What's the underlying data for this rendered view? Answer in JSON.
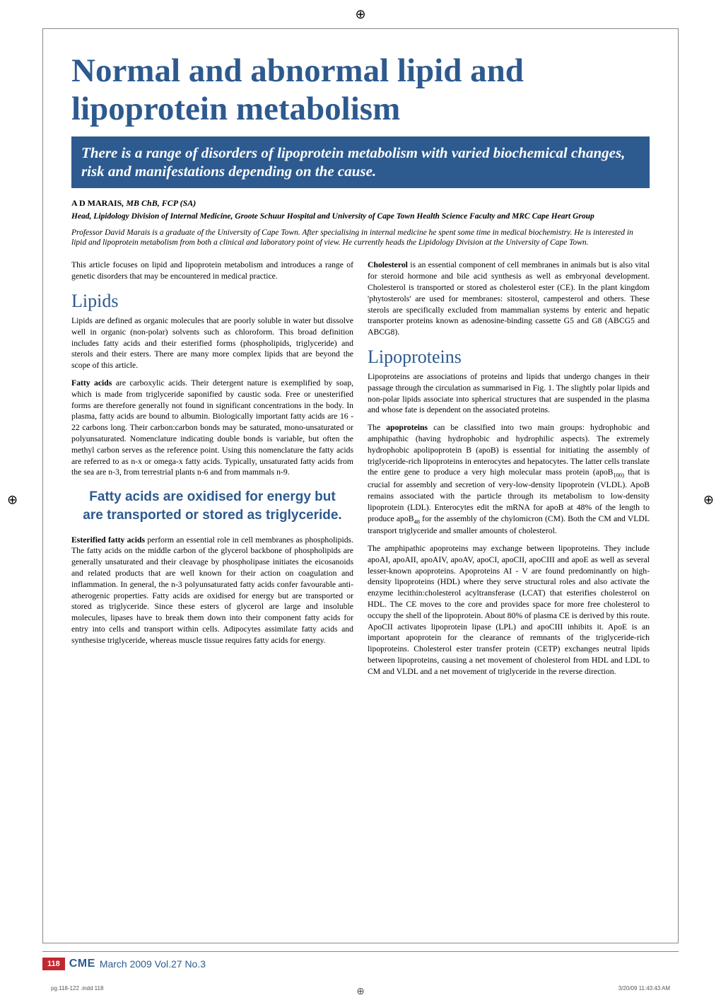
{
  "crop_mark": "⊕",
  "title": "Normal and abnormal lipid and lipoprotein metabolism",
  "subtitle": "There is a range of disorders of lipoprotein metabolism with varied biochemical changes, risk and manifestations depending on the cause.",
  "author_name": "A D MARAIS",
  "author_cred": ", MB ChB, FCP (SA)",
  "affiliation": "Head, Lipidology Division of Internal Medicine, Groote Schuur Hospital and University of Cape Town Health Science Faculty and MRC Cape Heart Group",
  "bio": "Professor David Marais is a graduate of the University of Cape Town. After specialising in internal medicine he spent some time in medical biochemistry. He is interested in lipid and lipoprotein metabolism from both a clinical and laboratory point of view. He currently heads the Lipidology Division at the University of Cape Town.",
  "intro_para": "This article focuses on lipid and lipoprotein metabolism and introduces a range of genetic disorders that may be encountered in medical practice.",
  "sec_lipids": "Lipids",
  "lipids_p1": "Lipids are defined as organic molecules that are poorly soluble in water but dissolve well in organic (non-polar) solvents such as chloroform. This broad definition includes fatty acids and their esterified forms (phospholipids, triglyceride) and sterols and their esters. There are many more complex lipids that are beyond the scope of this article.",
  "lipids_p2_lead": "Fatty acids",
  "lipids_p2": " are carboxylic acids. Their detergent nature is exemplified by soap, which is made from triglyceride saponified by caustic soda. Free or unesterified forms are therefore generally not found in significant concentrations in the body. In plasma, fatty acids are bound to albumin. Biologically important fatty acids are 16 - 22 carbons long. Their carbon:carbon bonds may be saturated, mono-unsaturated or polyunsaturated. Nomenclature indicating double bonds is variable, but often the methyl carbon serves as the reference point. Using this nomenclature the fatty acids are referred to as n-x or omega-x fatty acids. Typically, unsaturated fatty acids from the sea are n-3, from terrestrial plants n-6 and from mammals n-9.",
  "pullquote": "Fatty acids are oxidised for energy but are transported or stored as triglyceride.",
  "lipids_p3_lead": "Esterified fatty acids",
  "lipids_p3": " perform an essential role in cell membranes as phospholipids. The fatty acids on the middle carbon of the glycerol backbone of phospholipids are generally unsaturated and their cleavage by phospholipase initiates the eicosanoids and related products that are well known for their action on coagulation and inflammation. In general, the n-3 polyunsaturated fatty acids confer favourable anti-atherogenic properties. Fatty acids are oxidised for energy but are transported or stored as triglyceride. Since these esters of glycerol are large and insoluble molecules, lipases have to break them down into their component fatty acids for entry into cells and transport within cells. Adipocytes assimilate fatty acids and synthesise triglyceride, whereas muscle tissue requires fatty acids for energy.",
  "chol_lead": "Cholesterol",
  "chol_p": " is an essential component of cell membranes in animals but is also vital for steroid hormone and bile acid synthesis as well as embryonal development. Cholesterol is transported or stored as cholesterol ester (CE). In the plant kingdom 'phytosterols' are used for membranes: sitosterol, campesterol and others. These sterols are specifically excluded from mammalian systems by enteric and hepatic transporter proteins known as adenosine-binding cassette G5 and G8 (ABCG5 and ABCG8).",
  "sec_lipoproteins": "Lipoproteins",
  "lipo_p1": "Lipoproteins are associations of proteins and lipids that undergo changes in their passage through the circulation as summarised in Fig. 1. The slightly polar lipids and non-polar lipids associate into spherical structures that are suspended in the plasma and whose fate is dependent on the associated proteins.",
  "lipo_p2a": "The ",
  "lipo_p2_lead": "apoproteins",
  "lipo_p2b": " can be classified into two main groups: hydrophobic and amphipathic (having hydrophobic and hydrophilic aspects). The extremely hydrophobic apolipoprotein B (apoB) is essential for initiating the assembly of triglyceride-rich lipoproteins in enterocytes and hepatocytes. The latter cells translate the entire gene to produce a very high molecular mass protein (apoB",
  "sub100": "100)",
  "lipo_p2c": " that is crucial for assembly and secretion of very-low-density lipoprotein (VLDL). ApoB remains associated with the particle through its metabolism to low-density lipoprotein (LDL). Enterocytes edit the mRNA for apoB at 48% of the length to produce apoB",
  "sub48": "48",
  "lipo_p2d": " for the assembly of the chylomicron (CM). Both the CM and VLDL transport triglyceride and smaller amounts of cholesterol.",
  "lipo_p3": "The amphipathic apoproteins may exchange between lipoproteins. They include apoAI, apoAII, apoAIV, apoAV, apoCI, apoCII, apoCIII and apoE as well as several lesser-known apoproteins. Apoproteins AI - V are found predominantly on high-density lipoproteins (HDL) where they serve structural roles and also activate the enzyme lecithin:cholesterol acyltransferase (LCAT) that esterifies cholesterol on HDL. The CE moves to the core and provides space for more free cholesterol to occupy the shell of the lipoprotein. About 80% of plasma CE is derived by this route. ApoCII activates lipoprotein lipase (LPL) and apoCIII inhibits it. ApoE is an important apoprotein for the clearance of remnants of the triglyceride-rich lipoproteins. Cholesterol ester transfer protein (CETP) exchanges neutral lipids between lipoproteins, causing a net movement of cholesterol from HDL and LDL to CM and VLDL and a net movement of triglyceride in the reverse direction.",
  "page_num": "118",
  "footer_cme": "CME",
  "footer_date": "March  2009  Vol.27  No.3",
  "indd_file": "pg.118-122 .indd   118",
  "indd_time": "3/20/09   11:43:43 AM",
  "colors": {
    "brand_blue": "#2d5a8f",
    "badge_red": "#c0282f"
  }
}
